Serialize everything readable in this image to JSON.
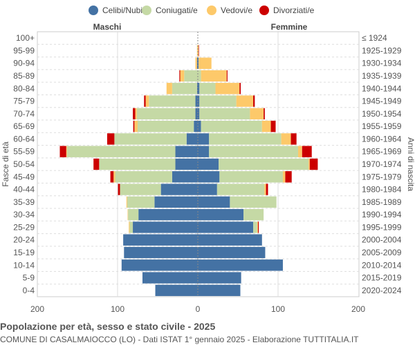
{
  "chart_data": {
    "type": "bar",
    "orientation": "horizontal-pyramid",
    "title": "Popolazione per età, sesso e stato civile - 2025",
    "subtitle": "COMUNE DI CASALMAIOCCO (LO) - Dati ISTAT 1° gennaio 2025 - Elaborazione TUTTITALIA.IT",
    "ylabel_left": "Fasce di età",
    "ylabel_right": "Anni di nascita",
    "left_header": "Maschi",
    "right_header": "Femmine",
    "xlim": [
      -200,
      200
    ],
    "xticks": [
      "200",
      "100",
      "0",
      "100",
      "200"
    ],
    "grid": true,
    "legend_position": "top",
    "age_groups": [
      "100+",
      "95-99",
      "90-94",
      "85-89",
      "80-84",
      "75-79",
      "70-74",
      "65-69",
      "60-64",
      "55-59",
      "50-54",
      "45-49",
      "40-44",
      "35-39",
      "30-34",
      "25-29",
      "20-24",
      "15-19",
      "10-14",
      "5-9",
      "0-4"
    ],
    "birth_years": [
      "≤ 1924",
      "1925-1929",
      "1930-1934",
      "1935-1939",
      "1940-1944",
      "1945-1949",
      "1950-1954",
      "1955-1959",
      "1960-1964",
      "1965-1969",
      "1970-1974",
      "1975-1979",
      "1980-1984",
      "1985-1989",
      "1990-1994",
      "1995-1999",
      "2000-2004",
      "2005-2009",
      "2010-2014",
      "2015-2019",
      "2020-2024"
    ],
    "series": [
      {
        "name": "Celibi/Nubili",
        "color": "#4472a4",
        "male": [
          0,
          0,
          1,
          0,
          1,
          3,
          3,
          5,
          14,
          28,
          28,
          32,
          46,
          54,
          74,
          81,
          93,
          92,
          95,
          69,
          53
        ],
        "female": [
          0,
          0,
          1,
          0,
          2,
          2,
          2,
          4,
          14,
          14,
          26,
          27,
          24,
          40,
          57,
          69,
          80,
          84,
          106,
          54,
          53
        ]
      },
      {
        "name": "Coniugati/e",
        "color": "#c5d9a5",
        "male": [
          0,
          0,
          0,
          17,
          31,
          58,
          73,
          70,
          90,
          135,
          95,
          71,
          51,
          34,
          13,
          4,
          0,
          0,
          0,
          0,
          0
        ],
        "female": [
          0,
          0,
          0,
          4,
          20,
          46,
          63,
          76,
          90,
          111,
          112,
          79,
          59,
          58,
          25,
          5,
          0,
          0,
          0,
          0,
          0
        ]
      },
      {
        "name": "Vedovi/e",
        "color": "#fdc96a",
        "male": [
          0,
          1,
          2,
          5,
          7,
          4,
          2,
          4,
          0,
          1,
          0,
          2,
          0,
          1,
          0.5,
          1,
          0,
          0,
          0,
          0,
          0
        ],
        "female": [
          0,
          1,
          16,
          32,
          30,
          21,
          17,
          11,
          12,
          5,
          1.5,
          3,
          2,
          0,
          0,
          1,
          0,
          0,
          0,
          0,
          0
        ]
      },
      {
        "name": "Divorziati/e",
        "color": "#cc0000",
        "male": [
          0,
          0,
          0,
          1,
          0,
          2,
          3,
          1.5,
          9,
          8,
          7,
          4,
          2.5,
          0,
          0,
          0,
          0,
          0,
          0,
          0,
          0
        ],
        "female": [
          0,
          0.5,
          0,
          1,
          1.5,
          2,
          1.5,
          6,
          7,
          12,
          10,
          8,
          2.5,
          0,
          0,
          1,
          0,
          0,
          0,
          0,
          0
        ]
      }
    ]
  }
}
